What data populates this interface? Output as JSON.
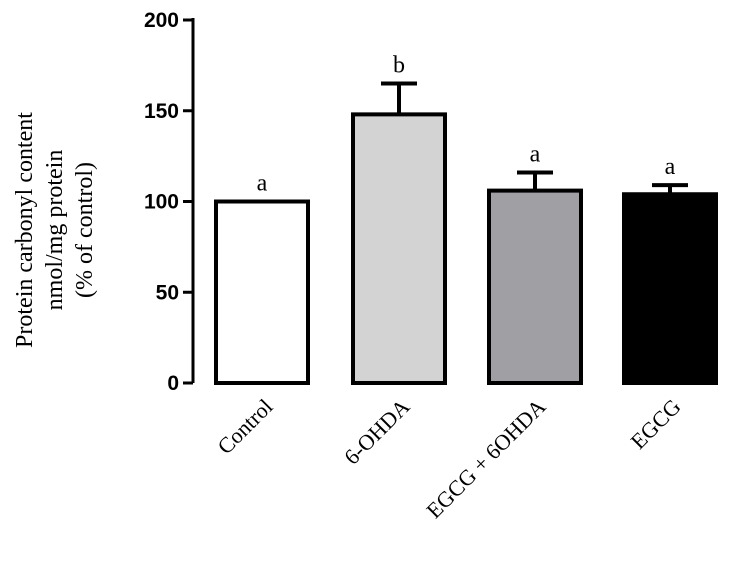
{
  "chart_data": {
    "type": "bar",
    "categories": [
      "Control",
      "6-OHDA",
      "EGCG + 6OHDA",
      "EGCG"
    ],
    "values": [
      100,
      148,
      106,
      104
    ],
    "errors": [
      0,
      17,
      10,
      5
    ],
    "significance": [
      "a",
      "b",
      "a",
      "a"
    ],
    "bar_colors": [
      "#ffffff",
      "#d3d3d3",
      "#a0a0a4",
      "#000000"
    ],
    "ylabel_lines": [
      "Protein carbonyl content",
      "nmol/mg protein",
      "(% of control)"
    ],
    "ylim": [
      0,
      200
    ],
    "yticks": [
      0,
      50,
      100,
      150,
      200
    ],
    "grid": false,
    "legend": false
  }
}
